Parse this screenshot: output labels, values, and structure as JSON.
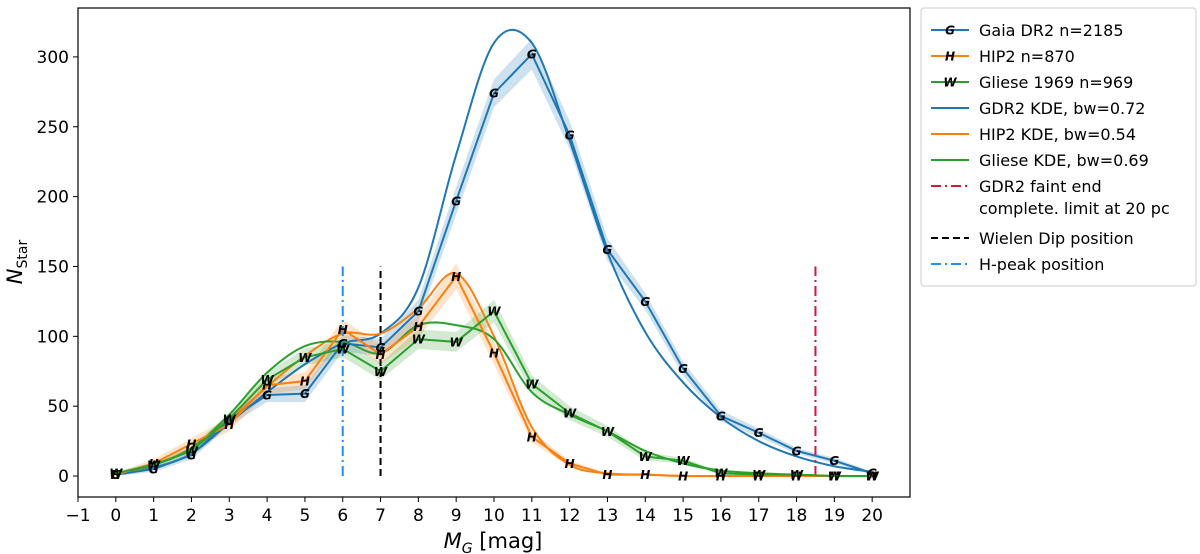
{
  "chart_data": {
    "type": "line",
    "xlabel": "M",
    "xlabel_sub": "G",
    "xlabel_unit": " [mag]",
    "ylabel": "N",
    "ylabel_sub": "Star",
    "xlim": [
      -1,
      21
    ],
    "ylim": [
      -15,
      335
    ],
    "xticks": [
      -1,
      0,
      1,
      2,
      3,
      4,
      5,
      6,
      7,
      8,
      9,
      10,
      11,
      12,
      13,
      14,
      15,
      16,
      17,
      18,
      19,
      20
    ],
    "xtick_labels": [
      "−1",
      "0",
      "1",
      "2",
      "3",
      "4",
      "5",
      "6",
      "7",
      "8",
      "9",
      "10",
      "11",
      "12",
      "13",
      "14",
      "15",
      "16",
      "17",
      "18",
      "19",
      "20"
    ],
    "yticks": [
      0,
      50,
      100,
      150,
      200,
      250,
      300
    ],
    "ytick_labels": [
      "0",
      "50",
      "100",
      "150",
      "200",
      "250",
      "300"
    ],
    "grid": false,
    "legend_position": "outside-right-top",
    "x": [
      0,
      1,
      2,
      3,
      4,
      5,
      6,
      7,
      8,
      9,
      10,
      11,
      12,
      13,
      14,
      15,
      16,
      17,
      18,
      19,
      20
    ],
    "series": [
      {
        "name": "Gaia DR2 n=2185",
        "color": "#1f77b4",
        "marker": "G",
        "values": [
          1,
          5,
          15,
          40,
          58,
          59,
          95,
          92,
          118,
          197,
          274,
          302,
          244,
          162,
          125,
          77,
          43,
          31,
          18,
          11,
          2
        ],
        "band_halfwidth": [
          1,
          2,
          3,
          4,
          5,
          6,
          6,
          6,
          8,
          10,
          10,
          11,
          10,
          8,
          6,
          5,
          4,
          3,
          2,
          2,
          1
        ]
      },
      {
        "name": "HIP2 n=870",
        "color": "#ff7f0e",
        "marker": "H",
        "values": [
          1,
          9,
          23,
          37,
          65,
          68,
          105,
          87,
          107,
          143,
          88,
          28,
          9,
          1,
          1,
          0,
          0,
          0,
          0,
          0,
          0
        ],
        "band_halfwidth": [
          1,
          3,
          4,
          5,
          6,
          6,
          7,
          7,
          8,
          9,
          8,
          4,
          2,
          1,
          1,
          0,
          0,
          0,
          0,
          0,
          0
        ]
      },
      {
        "name": "Gliese 1969 n=969",
        "color": "#2ca02c",
        "marker": "W",
        "values": [
          2,
          8,
          18,
          41,
          69,
          85,
          91,
          75,
          98,
          96,
          118,
          66,
          45,
          32,
          14,
          11,
          2,
          1,
          1,
          0,
          0
        ],
        "band_halfwidth": [
          1,
          2,
          3,
          4,
          5,
          6,
          6,
          6,
          7,
          7,
          8,
          6,
          5,
          4,
          3,
          2,
          1,
          1,
          0,
          0,
          0
        ]
      },
      {
        "name": "GDR2 KDE, bw=0.72",
        "color": "#1f77b4",
        "values": [
          1,
          6,
          16,
          38,
          60,
          80,
          95,
          102,
          135,
          230,
          310,
          310,
          240,
          160,
          103,
          67,
          42,
          25,
          14,
          7,
          3
        ]
      },
      {
        "name": "HIP2 KDE, bw=0.54",
        "color": "#ff7f0e",
        "values": [
          1,
          8,
          20,
          40,
          64,
          86,
          102,
          102,
          120,
          145,
          100,
          35,
          8,
          2,
          1,
          0,
          0,
          0,
          0,
          0,
          0
        ]
      },
      {
        "name": "Gliese KDE, bw=0.69",
        "color": "#2ca02c",
        "values": [
          2,
          8,
          20,
          44,
          74,
          93,
          96,
          88,
          108,
          108,
          98,
          60,
          44,
          32,
          18,
          9,
          4,
          2,
          1,
          0,
          0
        ]
      }
    ],
    "vlines": [
      {
        "name": "GDR2 faint end complete. limit at 20 pc",
        "color": "#dc143c",
        "dash": "dashdot",
        "x": 18.5,
        "y": [
          0,
          150
        ]
      },
      {
        "name": "Wielen Dip position",
        "color": "#000000",
        "dash": "dashed",
        "x": 7,
        "y": [
          0,
          150
        ]
      },
      {
        "name": "H-peak position",
        "color": "#1e90ff",
        "dash": "dashdot",
        "x": 6,
        "y": [
          0,
          150
        ]
      }
    ],
    "legend": [
      {
        "lines": [
          "Gaia DR2 n=2185"
        ],
        "color": "#1f77b4",
        "style": "solid",
        "marker": "G"
      },
      {
        "lines": [
          "HIP2 n=870"
        ],
        "color": "#ff7f0e",
        "style": "solid",
        "marker": "H"
      },
      {
        "lines": [
          "Gliese 1969 n=969"
        ],
        "color": "#2ca02c",
        "style": "solid",
        "marker": "W"
      },
      {
        "lines": [
          "GDR2 KDE, bw=0.72"
        ],
        "color": "#1f77b4",
        "style": "solid"
      },
      {
        "lines": [
          "HIP2 KDE, bw=0.54"
        ],
        "color": "#ff7f0e",
        "style": "solid"
      },
      {
        "lines": [
          "Gliese KDE, bw=0.69"
        ],
        "color": "#2ca02c",
        "style": "solid"
      },
      {
        "lines": [
          "GDR2 faint end",
          "complete. limit at 20 pc"
        ],
        "color": "#dc143c",
        "style": "dashdot"
      },
      {
        "lines": [
          "Wielen Dip position"
        ],
        "color": "#000000",
        "style": "dashed"
      },
      {
        "lines": [
          "H-peak position"
        ],
        "color": "#1e90ff",
        "style": "dashdot"
      }
    ]
  }
}
